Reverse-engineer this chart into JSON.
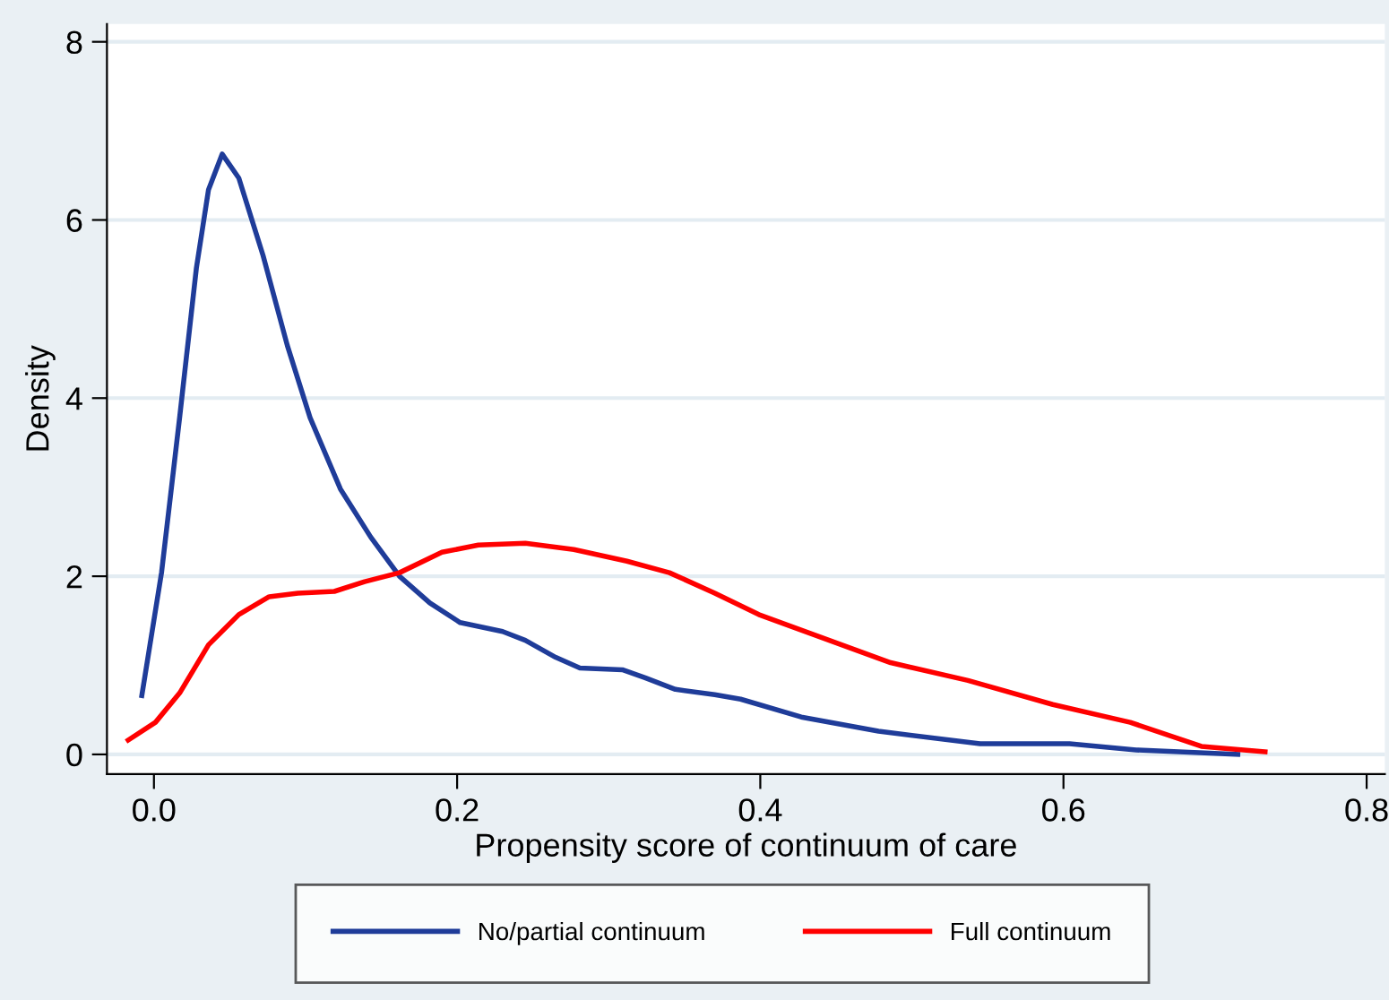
{
  "chart_data": {
    "type": "line",
    "xlabel": "Propensity score of continuum of care",
    "ylabel": "Density",
    "xlim": [
      -0.031,
      0.812
    ],
    "ylim": [
      -0.22,
      8.2
    ],
    "xticks": [
      {
        "value": 0,
        "label": "0.0"
      },
      {
        "value": 0.2,
        "label": "0.2"
      },
      {
        "value": 0.4,
        "label": "0.4"
      },
      {
        "value": 0.6,
        "label": "0.6"
      },
      {
        "value": 0.8,
        "label": "0.8"
      }
    ],
    "yticks": [
      0,
      2,
      4,
      6,
      8
    ],
    "grid": "y",
    "legend": "bottom",
    "marker": "none",
    "line_style": "solid",
    "series": [
      {
        "name": "No/partial continuum",
        "color": "#1f3c99",
        "x": [
          -0.008,
          0.005,
          0.017,
          0.028,
          0.036,
          0.045,
          0.056,
          0.072,
          0.088,
          0.103,
          0.123,
          0.143,
          0.162,
          0.182,
          0.202,
          0.23,
          0.245,
          0.265,
          0.281,
          0.309,
          0.324,
          0.344,
          0.37,
          0.387,
          0.427,
          0.478,
          0.545,
          0.604,
          0.648,
          0.715
        ],
        "values": [
          0.66,
          2.04,
          3.79,
          5.46,
          6.34,
          6.74,
          6.47,
          5.6,
          4.59,
          3.78,
          2.98,
          2.44,
          2.0,
          1.7,
          1.48,
          1.38,
          1.28,
          1.09,
          0.97,
          0.95,
          0.86,
          0.73,
          0.67,
          0.62,
          0.42,
          0.26,
          0.12,
          0.12,
          0.05,
          0.0
        ]
      },
      {
        "name": "Full continuum",
        "color": "#ff0000",
        "x": [
          -0.017,
          0.001,
          0.017,
          0.036,
          0.056,
          0.076,
          0.095,
          0.119,
          0.139,
          0.162,
          0.19,
          0.214,
          0.245,
          0.277,
          0.312,
          0.34,
          0.37,
          0.399,
          0.486,
          0.537,
          0.593,
          0.644,
          0.691,
          0.733
        ],
        "values": [
          0.16,
          0.36,
          0.69,
          1.23,
          1.57,
          1.77,
          1.81,
          1.83,
          1.94,
          2.04,
          2.27,
          2.35,
          2.37,
          2.3,
          2.17,
          2.04,
          1.81,
          1.57,
          1.03,
          0.83,
          0.56,
          0.36,
          0.09,
          0.03
        ]
      }
    ]
  }
}
